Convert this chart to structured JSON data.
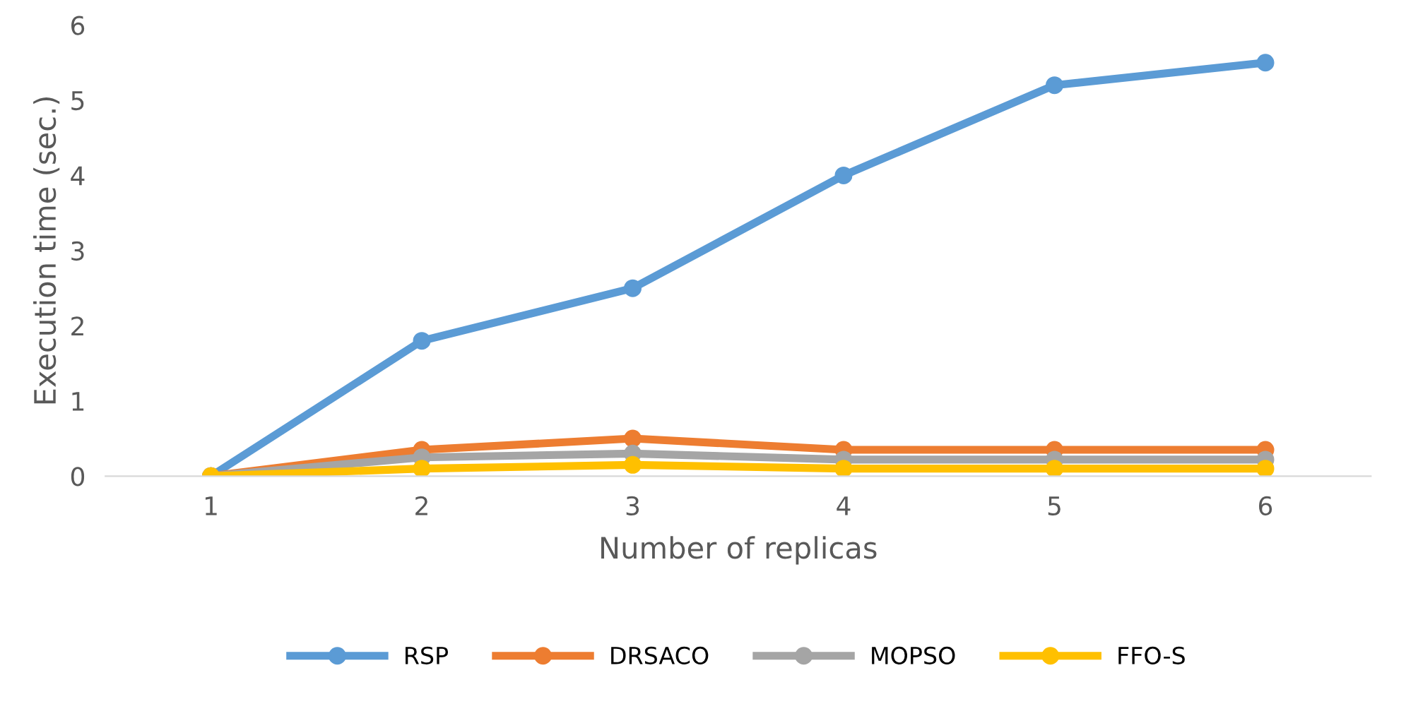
{
  "chart_data": {
    "type": "line",
    "xlabel": "Number of replicas",
    "ylabel": "Execution time (sec.)",
    "categories": [
      "1",
      "2",
      "3",
      "4",
      "5",
      "6"
    ],
    "series": [
      {
        "name": "RSP",
        "color": "#5b9bd5",
        "values": [
          0,
          1.8,
          2.5,
          4.0,
          5.2,
          5.5
        ]
      },
      {
        "name": "DRSACO",
        "color": "#ed7d31",
        "values": [
          0,
          0.35,
          0.5,
          0.35,
          0.35,
          0.35
        ]
      },
      {
        "name": "MOPSO",
        "color": "#a5a5a5",
        "values": [
          0,
          0.25,
          0.3,
          0.22,
          0.22,
          0.22
        ]
      },
      {
        "name": "FFO-S",
        "color": "#ffc000",
        "values": [
          0,
          0.1,
          0.15,
          0.1,
          0.1,
          0.1
        ]
      }
    ],
    "ylim": [
      0,
      6
    ],
    "yticks": [
      0,
      1,
      2,
      3,
      4,
      5,
      6
    ],
    "grid": false,
    "legend": "bottom",
    "marker": "circle",
    "line_style": "solid"
  }
}
